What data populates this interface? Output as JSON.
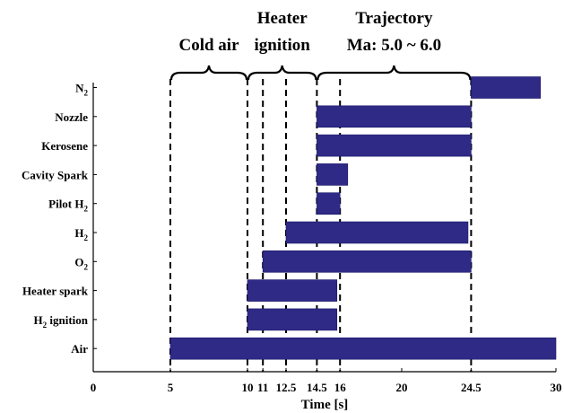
{
  "chart_data": {
    "type": "bar",
    "orientation": "horizontal-gantt",
    "xlabel": "Time [s]",
    "xlim": [
      0,
      30
    ],
    "x_ticks": [
      {
        "value": 0,
        "label": "0"
      },
      {
        "value": 5,
        "label": "5"
      },
      {
        "value": 10,
        "label": "10"
      },
      {
        "value": 11,
        "label": "11"
      },
      {
        "value": 12.5,
        "label": "12.5"
      },
      {
        "value": 14.5,
        "label": "14.5"
      },
      {
        "value": 16,
        "label": "16"
      },
      {
        "value": 20,
        "label": "20"
      },
      {
        "value": 24.5,
        "label": "24.5"
      },
      {
        "value": 30,
        "label": "30"
      }
    ],
    "bar_color": "#2e2a86",
    "rows": [
      {
        "label_main": "N",
        "label_sub": "2",
        "label_tail": "",
        "start": 24.5,
        "end": 29
      },
      {
        "label_main": "Nozzle",
        "label_sub": "",
        "label_tail": "",
        "start": 14.5,
        "end": 24.5
      },
      {
        "label_main": "Kerosene",
        "label_sub": "",
        "label_tail": "",
        "start": 14.5,
        "end": 24.5
      },
      {
        "label_main": "Cavity Spark",
        "label_sub": "",
        "label_tail": "",
        "start": 14.5,
        "end": 16.5
      },
      {
        "label_main": "Pilot H",
        "label_sub": "2",
        "label_tail": "",
        "start": 14.5,
        "end": 16
      },
      {
        "label_main": "H",
        "label_sub": "2",
        "label_tail": "",
        "start": 12.5,
        "end": 24.3
      },
      {
        "label_main": "O",
        "label_sub": "2",
        "label_tail": "",
        "start": 11,
        "end": 24.5
      },
      {
        "label_main": "Heater spark",
        "label_sub": "",
        "label_tail": "",
        "start": 10,
        "end": 15.8
      },
      {
        "label_main": "H",
        "label_sub": "2",
        "label_tail": " ignition",
        "start": 10,
        "end": 15.8
      },
      {
        "label_main": "Air",
        "label_sub": "",
        "label_tail": "",
        "start": 5,
        "end": 30
      }
    ],
    "dashed_lines": [
      5,
      10,
      11,
      12.5,
      14.5,
      16,
      24.5
    ],
    "phases": [
      {
        "lines": [
          "Cold air"
        ],
        "start": 5,
        "end": 10
      },
      {
        "lines": [
          "Heater",
          "ignition"
        ],
        "start": 10,
        "end": 14.5
      },
      {
        "lines": [
          "Trajectory",
          "Ma: 5.0 ~ 6.0"
        ],
        "start": 14.5,
        "end": 24.5
      }
    ],
    "grid": false,
    "legend": "none"
  }
}
